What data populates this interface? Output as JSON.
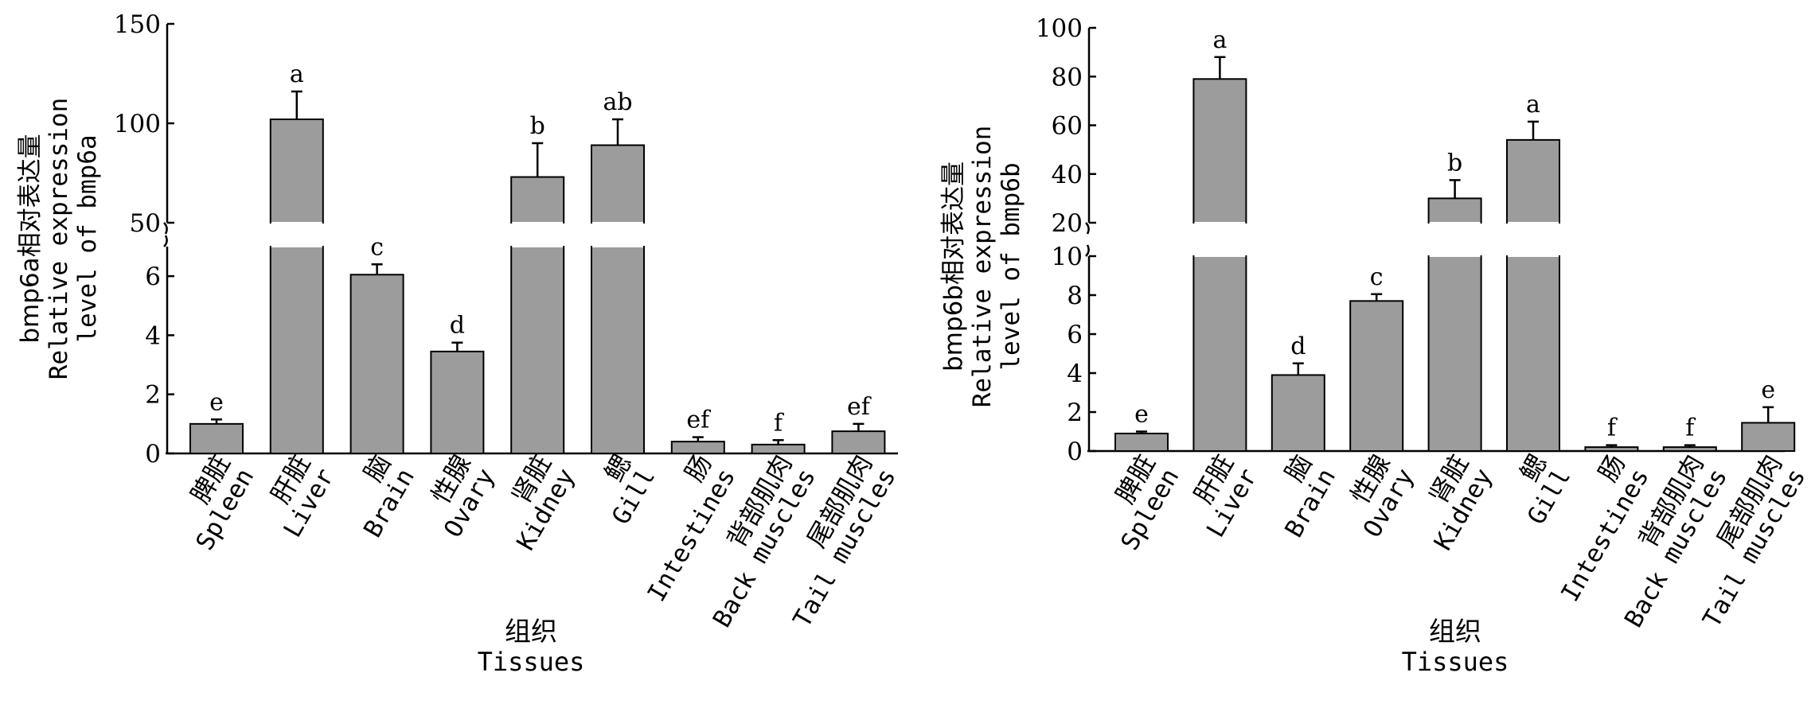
{
  "colors": {
    "bar": "#9c9c9c",
    "axis": "#000000",
    "background": "#ffffff"
  },
  "chart_data": [
    {
      "type": "bar",
      "title": "",
      "ylabel_lines": [
        "bmp6a相对表达量",
        "Relative expression",
        "level of bmp6a"
      ],
      "xlabel_cn": "组织",
      "xlabel_en": "Tissues",
      "broken_axis": true,
      "upper_ylim": [
        50,
        150
      ],
      "upper_yticks": [
        "150",
        "100",
        "50"
      ],
      "lower_ylim": [
        0,
        7
      ],
      "lower_yticks": [
        "6",
        "4",
        "2",
        "0"
      ],
      "categories": [
        {
          "cn": "脾脏",
          "en": "Spleen"
        },
        {
          "cn": "肝脏",
          "en": "Liver"
        },
        {
          "cn": "脑",
          "en": "Brain"
        },
        {
          "cn": "性腺",
          "en": "Ovary"
        },
        {
          "cn": "肾脏",
          "en": "Kidney"
        },
        {
          "cn": "鳃",
          "en": "Gill"
        },
        {
          "cn": "肠",
          "en": "Intestines"
        },
        {
          "cn": "背部肌肉",
          "en": "Back muscles"
        },
        {
          "cn": "尾部肌肉",
          "en": "Tail muscles"
        }
      ],
      "values": [
        1.0,
        102,
        6.05,
        3.45,
        73,
        89,
        0.4,
        0.3,
        0.75
      ],
      "errors": [
        0.15,
        14,
        0.35,
        0.3,
        17,
        13,
        0.15,
        0.15,
        0.25
      ],
      "significance": [
        "e",
        "a",
        "c",
        "d",
        "b",
        "ab",
        "ef",
        "f",
        "ef"
      ]
    },
    {
      "type": "bar",
      "title": "",
      "ylabel_lines": [
        "bmp6b相对表达量",
        "Relative expression",
        "level of bmp6b"
      ],
      "xlabel_cn": "组织",
      "xlabel_en": "Tissues",
      "broken_axis": true,
      "upper_ylim": [
        20,
        100
      ],
      "upper_yticks": [
        "100",
        "80",
        "60",
        "40",
        "20"
      ],
      "lower_ylim": [
        0,
        10
      ],
      "lower_yticks": [
        "10",
        "8",
        "6",
        "4",
        "2",
        "0"
      ],
      "categories": [
        {
          "cn": "脾脏",
          "en": "Spleen"
        },
        {
          "cn": "肝脏",
          "en": "Liver"
        },
        {
          "cn": "脑",
          "en": "Brain"
        },
        {
          "cn": "性腺",
          "en": "Ovary"
        },
        {
          "cn": "肾脏",
          "en": "Kidney"
        },
        {
          "cn": "鳃",
          "en": "Gill"
        },
        {
          "cn": "肠",
          "en": "Intestines"
        },
        {
          "cn": "背部肌肉",
          "en": "Back muscles"
        },
        {
          "cn": "尾部肌肉",
          "en": "Tail muscles"
        }
      ],
      "values": [
        0.9,
        79,
        3.9,
        7.7,
        30,
        54,
        0.2,
        0.2,
        1.45
      ],
      "errors": [
        0.1,
        9,
        0.6,
        0.35,
        7.5,
        7.5,
        0.1,
        0.1,
        0.8
      ],
      "significance": [
        "e",
        "a",
        "d",
        "c",
        "b",
        "a",
        "f",
        "f",
        "e"
      ]
    }
  ]
}
